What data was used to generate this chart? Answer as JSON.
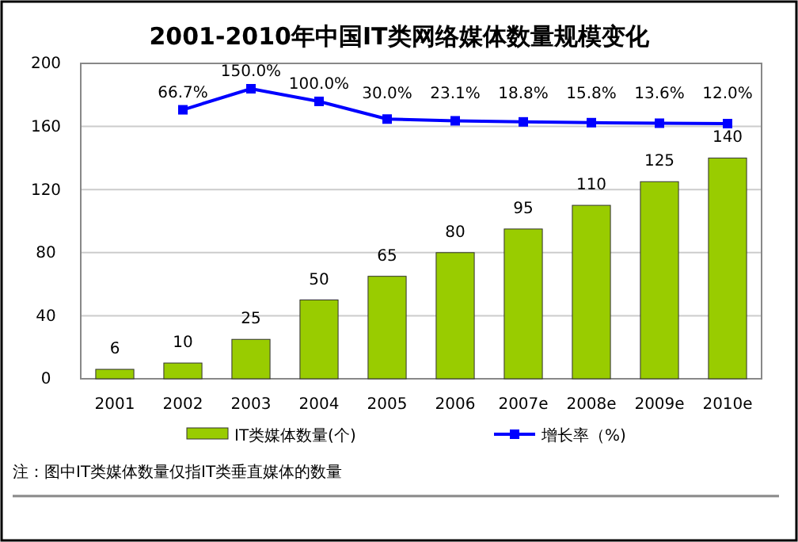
{
  "chart_data": {
    "type": "bar",
    "title": "2001-2010年中国IT类网络媒体数量规模变化",
    "categories": [
      "2001",
      "2002",
      "2003",
      "2004",
      "2005",
      "2006",
      "2007e",
      "2008e",
      "2009e",
      "2010e"
    ],
    "series": [
      {
        "name": "IT类媒体数量(个)",
        "color": "#99cc00",
        "values": [
          6,
          10,
          25,
          50,
          65,
          80,
          95,
          110,
          125,
          140
        ],
        "data_labels": true
      },
      {
        "name": "增长率（%)",
        "type": "line",
        "axis": "y2",
        "color": "#0000ff",
        "marker": "square",
        "values": [
          null,
          66.7,
          150.0,
          100.0,
          30.0,
          23.1,
          18.8,
          15.8,
          13.6,
          12.0
        ],
        "value_labels": [
          null,
          "66.7%",
          "150.0%",
          "100.0%",
          "30.0%",
          "23.1%",
          "18.8%",
          "15.8%",
          "13.6%",
          "12.0%"
        ]
      }
    ],
    "ylim": [
      0,
      200
    ],
    "yticks": [
      0,
      40,
      80,
      120,
      160,
      200
    ],
    "grid": "y",
    "legend": "bottom",
    "annotations": [
      "注：图中IT类媒体数量仅指IT类垂直媒体的数量"
    ]
  }
}
